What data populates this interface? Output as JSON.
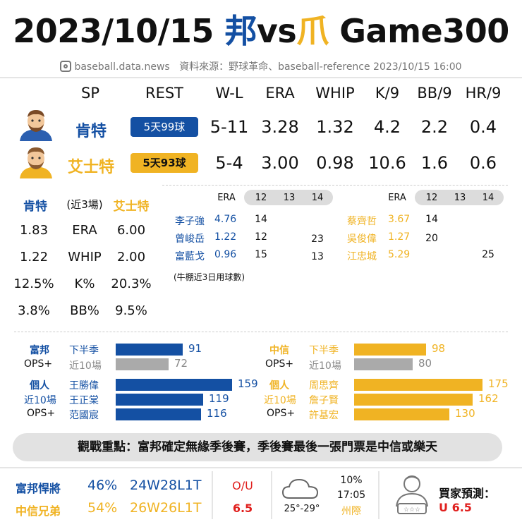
{
  "header": {
    "date": "2023/10/15",
    "team_home": "邦",
    "vs": "vs",
    "team_away": "爪",
    "game": "Game300",
    "site": "baseball.data.news",
    "source": "資料來源：野球革命、baseball-reference 2023/10/15 16:00"
  },
  "sp_table": {
    "columns": [
      "SP",
      "REST",
      "W-L",
      "ERA",
      "WHIP",
      "K/9",
      "BB/9",
      "HR/9"
    ],
    "rows": [
      {
        "name": "肯特",
        "rest": "5天99球",
        "wl": "5-11",
        "era": "3.28",
        "whip": "1.32",
        "k9": "4.2",
        "bb9": "2.2",
        "hr9": "0.4"
      },
      {
        "name": "艾士特",
        "rest": "5天93球",
        "wl": "5-4",
        "era": "3.00",
        "whip": "0.98",
        "k9": "10.6",
        "bb9": "1.6",
        "hr9": "0.6"
      }
    ]
  },
  "recent": {
    "left_name": "肯特",
    "center_label": "(近3場)",
    "right_name": "艾士特",
    "rows": [
      {
        "left": "1.83",
        "label": "ERA",
        "right": "6.00"
      },
      {
        "left": "1.22",
        "label": "WHIP",
        "right": "2.00"
      },
      {
        "left": "12.5%",
        "label": "K%",
        "right": "20.3%"
      },
      {
        "left": "3.8%",
        "label": "BB%",
        "right": "9.5%"
      }
    ]
  },
  "bullpen": {
    "note": "(牛棚近3日用球數)",
    "left": {
      "era_label": "ERA",
      "days": [
        "12",
        "13",
        "14"
      ],
      "rows": [
        {
          "name": "李子強",
          "era": "4.76",
          "d12": "14",
          "d13": "",
          "d14": ""
        },
        {
          "name": "曾峻岳",
          "era": "1.22",
          "d12": "12",
          "d13": "",
          "d14": "23"
        },
        {
          "name": "富藍戈",
          "era": "0.96",
          "d12": "15",
          "d13": "",
          "d14": "13"
        }
      ]
    },
    "right": {
      "era_label": "ERA",
      "days": [
        "12",
        "13",
        "14"
      ],
      "rows": [
        {
          "name": "蔡齊哲",
          "era": "3.67",
          "d12": "14",
          "d13": "",
          "d14": ""
        },
        {
          "name": "吳俊偉",
          "era": "1.27",
          "d12": "20",
          "d13": "",
          "d14": ""
        },
        {
          "name": "江忠城",
          "era": "5.29",
          "d12": "",
          "d13": "",
          "d14": "25"
        }
      ]
    }
  },
  "ops": {
    "scale_max": 175,
    "left": {
      "team": "富邦",
      "ops_label": "OPS+",
      "half_label": "下半季",
      "half_value": 91,
      "last10_label": "近10場",
      "last10_value": 72,
      "ind_label_1": "個人",
      "ind_label_2": "近10場",
      "ind_label_3": "OPS+",
      "players": [
        {
          "name": "王勝偉",
          "value": 159
        },
        {
          "name": "王正棠",
          "value": 119
        },
        {
          "name": "范國宸",
          "value": 116
        }
      ]
    },
    "right": {
      "team": "中信",
      "ops_label": "OPS+",
      "half_label": "下半季",
      "half_value": 98,
      "last10_label": "近10場",
      "last10_value": 80,
      "ind_label_1": "個人",
      "ind_label_2": "近10場",
      "ind_label_3": "OPS+",
      "players": [
        {
          "name": "周思齊",
          "value": 175
        },
        {
          "name": "詹子賢",
          "value": 162
        },
        {
          "name": "許基宏",
          "value": 130
        }
      ]
    }
  },
  "focus": "觀戰重點：富邦確定無緣季後賽，季後賽最後一張門票是中信或樂天",
  "bottom": {
    "team1": "富邦悍將",
    "team1_pct": "46%",
    "team1_rec": "24W28L1T",
    "team2": "中信兄弟",
    "team2_pct": "54%",
    "team2_rec": "26W26L1T",
    "ou_label": "O/U",
    "ou_value": "6.5",
    "temp": "25°-29°",
    "rain": "10%",
    "time": "17:05",
    "venue": "州際",
    "pred_label": "買家預測：",
    "pred_value": "U 6.5"
  },
  "colors": {
    "blue": "#1450a3",
    "gold": "#f0b323",
    "gray": "#aaaaaa",
    "red": "#e0201e"
  }
}
